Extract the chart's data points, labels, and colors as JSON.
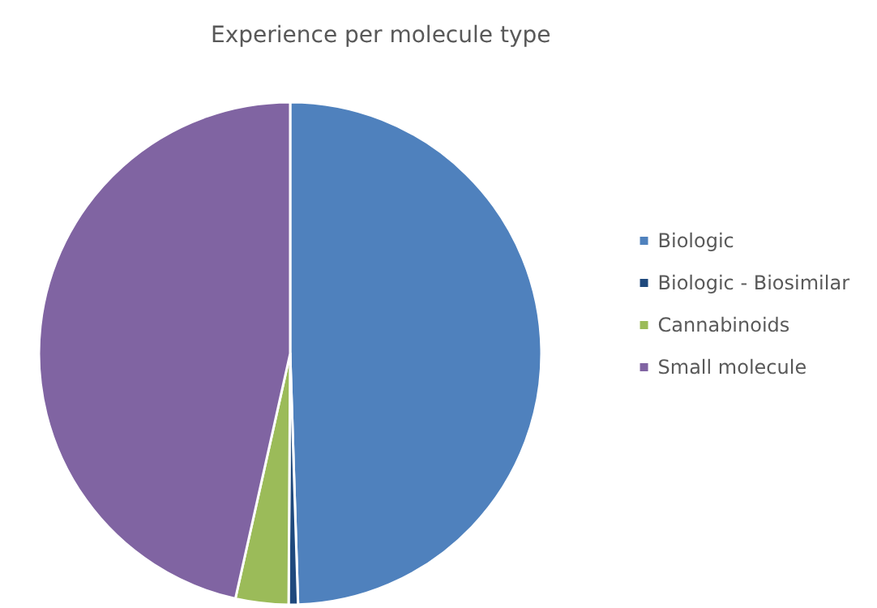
{
  "chart_data": {
    "type": "pie",
    "title": "Experience per molecule type",
    "categories": [
      "Biologic",
      "Biologic - Biosimilar",
      "Cannabinoids",
      "Small molecule"
    ],
    "values": [
      49.5,
      0.6,
      3.4,
      46.5
    ],
    "colors": [
      "#4f81bd",
      "#1f497d",
      "#9bbb59",
      "#8064a2"
    ],
    "legend": "right"
  }
}
